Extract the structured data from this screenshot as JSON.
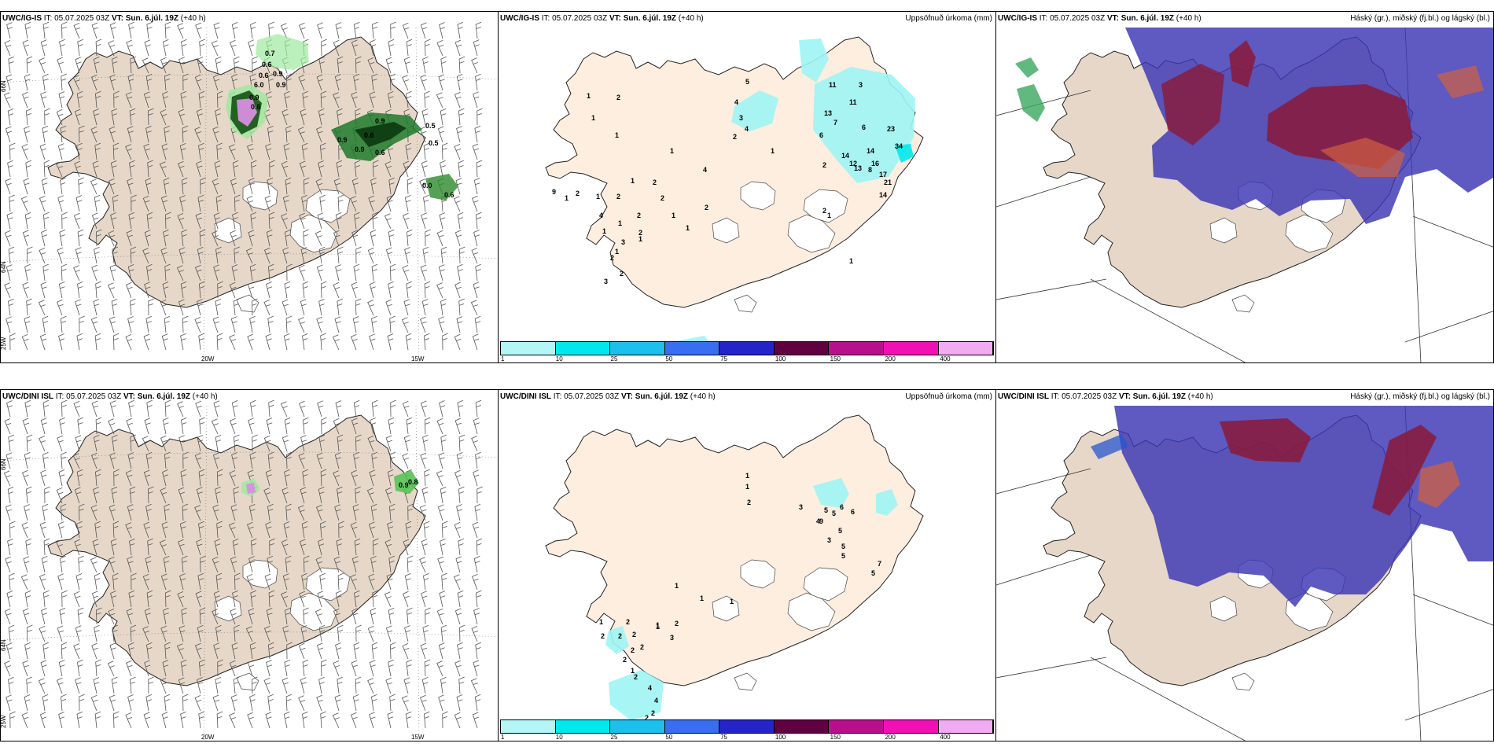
{
  "panels": [
    {
      "model": "UWC/IG-IS",
      "it": "IT: 05.07.2025 03Z",
      "vt_label": "VT:",
      "vt": "Sun. 6.júl. 19Z",
      "lead": "(+40 h)",
      "right_title": ""
    },
    {
      "model": "UWC/IG-IS",
      "it": "IT: 05.07.2025 03Z",
      "vt_label": "VT:",
      "vt": "Sun. 6.júl. 19Z",
      "lead": "(+40 h)",
      "right_title": "Uppsöfnuð úrkoma (mm)"
    },
    {
      "model": "UWC/IG-IS",
      "it": "IT: 05.07.2025 03Z",
      "vt_label": "VT:",
      "vt": "Sun. 6.júl. 19Z",
      "lead": "(+40 h)",
      "right_title": "Háský (gr.), miðský (fj.bl.) og lágský (bl.)"
    },
    {
      "model": "UWC/DINI ISL",
      "it": "IT: 05.07.2025 03Z",
      "vt_label": "VT:",
      "vt": "Sun. 6.júl. 19Z",
      "lead": "(+40 h)",
      "right_title": ""
    },
    {
      "model": "UWC/DINI ISL",
      "it": "IT: 05.07.2025 03Z",
      "vt_label": "VT:",
      "vt": "Sun. 6.júl. 19Z",
      "lead": "(+40 h)",
      "right_title": "Uppsöfnuð úrkoma (mm)"
    },
    {
      "model": "UWC/DINI ISL",
      "it": "IT: 05.07.2025 03Z",
      "vt_label": "VT:",
      "vt": "Sun. 6.júl. 19Z",
      "lead": "(+40 h)",
      "right_title": "Háský (gr.), miðský (fj.bl.) og lágský (bl.)"
    }
  ],
  "axes": {
    "lat_top": "66N",
    "lat_mid": "64N",
    "lat_bot": "25W",
    "lon_left": "20W",
    "lon_right": "15W"
  },
  "colorbar": {
    "ticks": [
      "1",
      "10",
      "25",
      "50",
      "75",
      "100",
      "150",
      "200",
      "400"
    ],
    "colors": [
      "#b4f5f5",
      "#00e8ee",
      "#1cc0ec",
      "#3a6ef0",
      "#2424c8",
      "#600040",
      "#b8108c",
      "#f010b4",
      "#f2aaf2"
    ]
  },
  "precip_top": [
    "5",
    "4",
    "3",
    "4",
    "2",
    "1",
    "1",
    "2",
    "1",
    "1",
    "1",
    "1",
    "2",
    "2",
    "1",
    "2",
    "2",
    "2",
    "1",
    "1",
    "1",
    "1",
    "2",
    "4",
    "1",
    "1",
    "3",
    "1",
    "2",
    "3",
    "2",
    "9",
    "4",
    "2",
    "11",
    "13",
    "7",
    "6",
    "11",
    "3",
    "6",
    "14",
    "12",
    "14",
    "16",
    "23",
    "13",
    "34",
    "2",
    "8",
    "17",
    "21",
    "14",
    "2",
    "1",
    "1"
  ],
  "precip_bottom": [
    "1",
    "1",
    "2",
    "3",
    "6",
    "5",
    "9",
    "6",
    "5",
    "5",
    "3",
    "4",
    "5",
    "5",
    "7",
    "5",
    "1",
    "2",
    "2",
    "2",
    "1",
    "1",
    "2",
    "1",
    "2",
    "2",
    "2",
    "4",
    "4",
    "2",
    "2",
    "2",
    "1",
    "3",
    "1",
    "2",
    "1"
  ],
  "wind_labels_top": [
    "0.7",
    "0.6",
    "0.6",
    "0.9",
    "6.0",
    "0.9",
    "0.9",
    "0.6",
    "0.9",
    "0.6",
    "0.5",
    "0.9",
    "0.6",
    "0.5",
    "0.9",
    "0.0",
    "0.6"
  ],
  "wind_labels_bottom": [
    "0.9",
    "0.8"
  ]
}
